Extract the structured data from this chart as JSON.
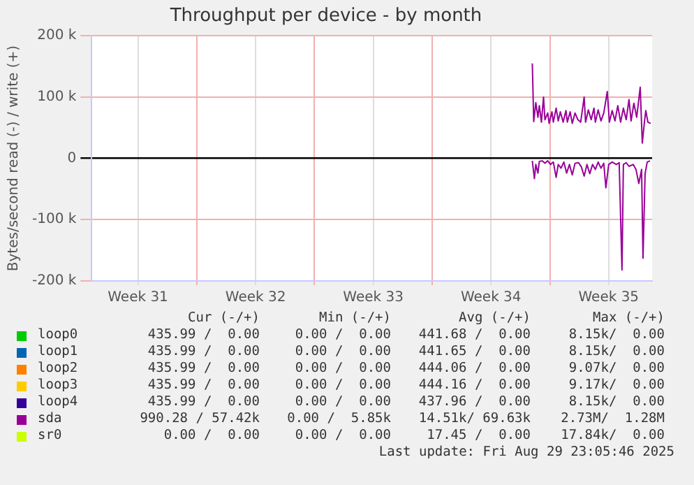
{
  "chart_data": {
    "type": "line",
    "title": "Throughput per device - by month",
    "ylabel": "Bytes/second read (-) / write (+)",
    "xlim": [
      "2025-07-28T18:00",
      "2025-08-31T02:00"
    ],
    "xticks": [
      {
        "value": "2025-07-31T12:00",
        "label": "Week 31"
      },
      {
        "value": "2025-08-04",
        "label": null
      },
      {
        "value": "2025-08-07T12:00",
        "label": "Week 32"
      },
      {
        "value": "2025-08-11",
        "label": null
      },
      {
        "value": "2025-08-14T12:00",
        "label": "Week 33"
      },
      {
        "value": "2025-08-18",
        "label": null
      },
      {
        "value": "2025-08-21T12:00",
        "label": "Week 34"
      },
      {
        "value": "2025-08-25",
        "label": null
      },
      {
        "value": "2025-08-28T12:00",
        "label": "Week 35"
      }
    ],
    "ylim": [
      -200000,
      200000
    ],
    "yticks": [
      {
        "value": -200000,
        "label": "-200 k"
      },
      {
        "value": -100000,
        "label": "-100 k"
      },
      0,
      {
        "value": 100000,
        "label": "100 k"
      },
      {
        "value": 200000,
        "label": "200 k"
      }
    ],
    "grid": true,
    "legend": "bottom",
    "marker": "none",
    "line_style": "solid",
    "series": [
      {
        "name": "loop0",
        "color": "#00cc00"
      },
      {
        "name": "loop1",
        "color": "#0066b3"
      },
      {
        "name": "loop2",
        "color": "#ff8000"
      },
      {
        "name": "loop3",
        "color": "#ffcc00"
      },
      {
        "name": "loop4",
        "color": "#330099"
      },
      {
        "name": "sda",
        "color": "#990099",
        "x": [
          "2025-08-23T23:00",
          "2025-08-24T01:00",
          "2025-08-24T04:00",
          "2025-08-24T07:00",
          "2025-08-24T09:00",
          "2025-08-24T12:00",
          "2025-08-24T15:00",
          "2025-08-24T17:00",
          "2025-08-24T21:00",
          "2025-08-24T23:00",
          "2025-08-25T03:00",
          "2025-08-25T05:00",
          "2025-08-25T09:00",
          "2025-08-25T12:00",
          "2025-08-25T15:00",
          "2025-08-25T19:00",
          "2025-08-25T23:00",
          "2025-08-26T01:00",
          "2025-08-26T05:00",
          "2025-08-26T08:00",
          "2025-08-26T12:00",
          "2025-08-26T16:00",
          "2025-08-26T20:00",
          "2025-08-27T01:00",
          "2025-08-27T03:00",
          "2025-08-27T07:00",
          "2025-08-27T11:00",
          "2025-08-27T15:00",
          "2025-08-27T17:00",
          "2025-08-27T21:00",
          "2025-08-28T01:00",
          "2025-08-28T05:00",
          "2025-08-28T10:00",
          "2025-08-28T13:00",
          "2025-08-28T17:00",
          "2025-08-28T21:00",
          "2025-08-29T01:00",
          "2025-08-29T05:00",
          "2025-08-29T09:00",
          "2025-08-29T13:00",
          "2025-08-29T17:00",
          "2025-08-29T20:00",
          "2025-08-30T00:00",
          "2025-08-30T04:00",
          "2025-08-30T09:00",
          "2025-08-30T12:00",
          "2025-08-30T15:00",
          "2025-08-30T17:00",
          "2025-08-30T20:00",
          "2025-08-31T00:00"
        ],
        "values": [
          155000,
          60000,
          91000,
          67000,
          86000,
          59000,
          100000,
          63000,
          74000,
          57000,
          76000,
          59000,
          82000,
          61000,
          76000,
          59000,
          78000,
          59000,
          76000,
          57000,
          74000,
          63000,
          59000,
          100000,
          59000,
          79000,
          63000,
          82000,
          59000,
          79000,
          61000,
          74000,
          109000,
          59000,
          78000,
          61000,
          86000,
          59000,
          82000,
          63000,
          96000,
          61000,
          90000,
          67000,
          116000,
          25000,
          59000,
          78000,
          59000,
          57000
        ]
      },
      {
        "name": "sr0",
        "color": "#ccff00"
      },
      {
        "color": "#990099",
        "x": [
          "2025-08-23T23:00",
          "2025-08-24T02:00",
          "2025-08-24T04:00",
          "2025-08-24T07:00",
          "2025-08-24T09:00",
          "2025-08-24T13:00",
          "2025-08-24T17:00",
          "2025-08-24T21:00",
          "2025-08-25T01:00",
          "2025-08-25T05:00",
          "2025-08-25T09:00",
          "2025-08-25T12:00",
          "2025-08-25T16:00",
          "2025-08-25T20:00",
          "2025-08-26T00:00",
          "2025-08-26T04:00",
          "2025-08-26T08:00",
          "2025-08-26T12:00",
          "2025-08-26T17:00",
          "2025-08-26T21:00",
          "2025-08-27T01:00",
          "2025-08-27T05:00",
          "2025-08-27T09:00",
          "2025-08-27T13:00",
          "2025-08-27T17:00",
          "2025-08-27T21:00",
          "2025-08-28T01:00",
          "2025-08-28T05:00",
          "2025-08-28T08:00",
          "2025-08-28T12:00",
          "2025-08-28T17:00",
          "2025-08-28T23:00",
          "2025-08-29T03:00",
          "2025-08-29T07:00",
          "2025-08-29T09:00",
          "2025-08-29T13:00",
          "2025-08-29T17:00",
          "2025-08-29T23:00",
          "2025-08-30T03:00",
          "2025-08-30T07:00",
          "2025-08-30T11:00",
          "2025-08-30T13:00",
          "2025-08-30T16:00",
          "2025-08-30T19:00",
          "2025-08-30T23:00"
        ],
        "values": [
          -4000,
          -33000,
          -10000,
          -24000,
          -5000,
          -4000,
          -8000,
          -4000,
          -10000,
          -6000,
          -31000,
          -10000,
          -16000,
          -6000,
          -24000,
          -10000,
          -27000,
          -8000,
          -7000,
          -14000,
          -29000,
          -10000,
          -25000,
          -10000,
          -18000,
          -6000,
          -16000,
          -8000,
          -48000,
          -10000,
          -6000,
          -10000,
          -7000,
          -182000,
          -10000,
          -7000,
          -13000,
          -10000,
          -18000,
          -41000,
          -18000,
          -163000,
          -25000,
          -6000,
          -4000
        ]
      }
    ],
    "annotations": [
      "Cur (-/+)",
      "Min (-/+)",
      "Avg (-/+)",
      "Max (-/+)",
      "435.99 /  0.00",
      "0.00 /  0.00",
      "441.68 /  0.00",
      "8.15k/  0.00",
      "435.99 /  0.00",
      "0.00 /  0.00",
      "441.65 /  0.00",
      "8.15k/  0.00",
      "435.99 /  0.00",
      "0.00 /  0.00",
      "444.06 /  0.00",
      "9.07k/  0.00",
      "435.99 /  0.00",
      "0.00 /  0.00",
      "444.16 /  0.00",
      "9.17k/  0.00",
      "435.99 /  0.00",
      "0.00 /  0.00",
      "437.96 /  0.00",
      "8.15k/  0.00",
      "990.28 / 57.42k",
      "0.00 /  5.85k",
      "14.51k/ 69.63k",
      "2.73M/  1.28M",
      "0.00 /  0.00",
      "0.00 /  0.00",
      "17.45 /  0.00",
      "17.84k/  0.00",
      "Last update: Fri Aug 29 23:05:46 2025"
    ]
  }
}
